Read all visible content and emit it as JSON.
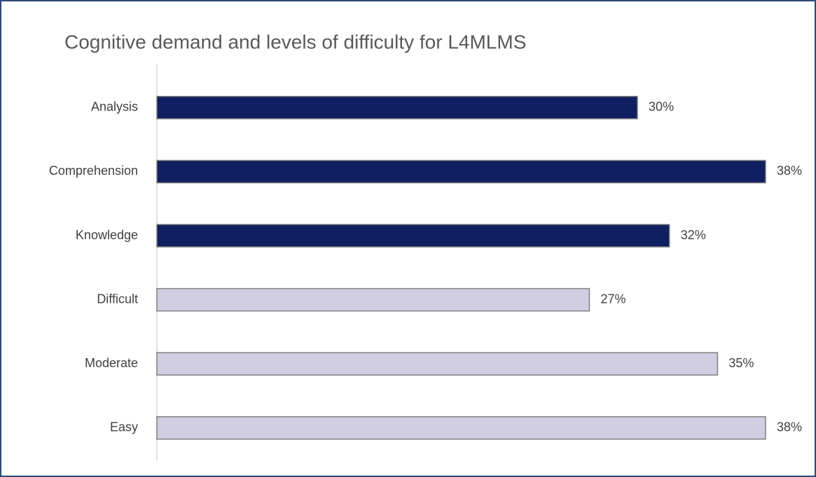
{
  "chart_data": {
    "type": "hbar",
    "title": "Cognitive demand and levels of difficulty for L4MLMS",
    "categories": [
      "Analysis",
      "Comprehension",
      "Knowledge",
      "Difficult",
      "Moderate",
      "Easy"
    ],
    "values": [
      30,
      38,
      32,
      27,
      35,
      38
    ],
    "value_labels": [
      "30%",
      "38%",
      "32%",
      "27%",
      "35%",
      "38%"
    ],
    "colors": [
      "#0f1f5f",
      "#0f1f5f",
      "#0f1f5f",
      "#d0cee0",
      "#d0cee0",
      "#d0cee0"
    ]
  }
}
